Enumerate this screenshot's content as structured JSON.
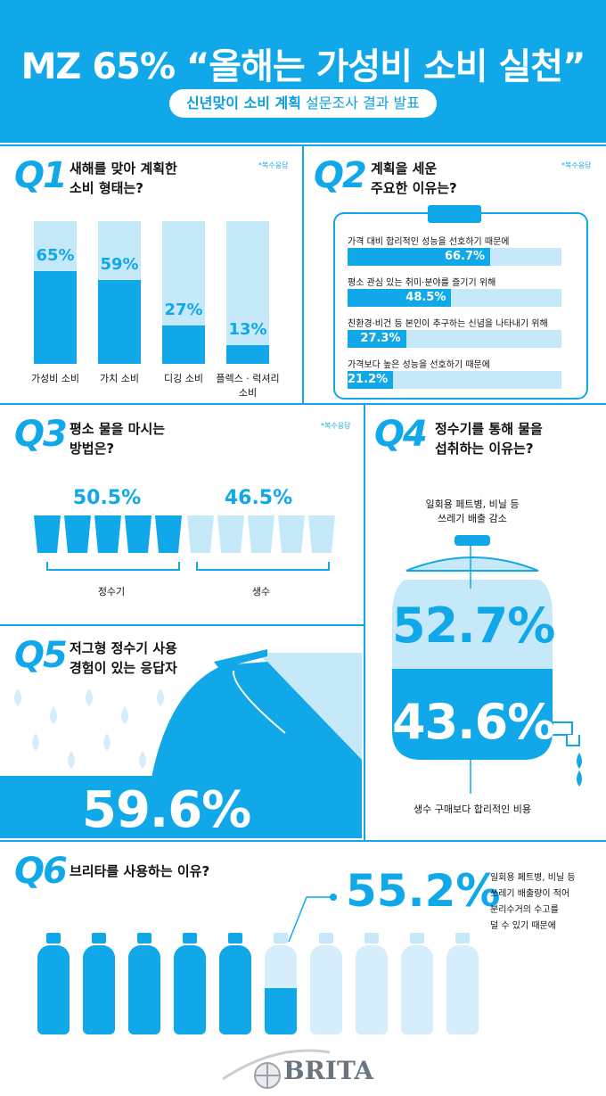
{
  "header": {
    "title": "MZ 65% “올해는 가성비 소비 실천”",
    "subtitle_bold": "신년맞이 소비 계획",
    "subtitle_rest": " 설문조사 결과 발표"
  },
  "footnote": "*복수응답",
  "q1": {
    "num": "Q1",
    "text_line1": "새해를 맞아 계획한",
    "text_line2": "소비 형태는?",
    "labels": [
      "65%",
      "59%",
      "27%",
      "13%"
    ],
    "categories": [
      "가성비 소비",
      "가치 소비",
      "디깅 소비",
      "플렉스 · 럭셔리 소비"
    ]
  },
  "q2": {
    "num": "Q2",
    "text_line1": "계획을 세운",
    "text_line2": "주요한 이유는?",
    "rows": [
      {
        "label": "가격 대비 합리적인 성능을 선호하기 때문에",
        "value": "66.7%"
      },
      {
        "label": "평소 관심 있는 취미·분야를 즐기기 위해",
        "value": "48.5%"
      },
      {
        "label": "친환경·비건 등 본인이 추구하는 신념을 나타내기 위해",
        "value": "27.3%"
      },
      {
        "label": "가격보다 높은 성능을 선호하기 때문에",
        "value": "21.2%"
      }
    ]
  },
  "q3": {
    "num": "Q3",
    "text_line1": "평소 물을 마시는",
    "text_line2": "방법은?",
    "left_value": "50.5%",
    "right_value": "46.5%",
    "left_label": "정수기",
    "right_label": "생수"
  },
  "q4": {
    "num": "Q4",
    "text_line1": "정수기를 통해 물을",
    "text_line2": "섭취하는 이유는?",
    "top_note_line1": "일회용 페트병, 비닐 등",
    "top_note_line2": "쓰레기 배출 감소",
    "top_value": "52.7%",
    "bottom_value": "43.6%",
    "bottom_note": "생수 구매보다 합리적인 비용"
  },
  "q5": {
    "num": "Q5",
    "text_line1": "저그형 정수기 사용",
    "text_line2": "경험이 있는 응답자",
    "value": "59.6%"
  },
  "q6": {
    "num": "Q6",
    "text": "브리타를 사용하는 이유?",
    "value": "55.2%",
    "note_line1": "일회용 페트병, 비닐 등",
    "note_line2": "쓰레기 배출량이 적어",
    "note_line3": "분리수거의 수고를",
    "note_line4": "덜 수 있기 때문에"
  },
  "footer": {
    "brand": "BRITA"
  },
  "chart_data": [
    {
      "type": "bar",
      "title": "새해를 맞아 계획한 소비 형태는?",
      "categories": [
        "가성비 소비",
        "가치 소비",
        "디깅 소비",
        "플렉스 · 럭셔리 소비"
      ],
      "values": [
        65,
        59,
        27,
        13
      ],
      "ylim": [
        0,
        100
      ]
    },
    {
      "type": "bar",
      "title": "계획을 세운 주요한 이유는?",
      "categories": [
        "가격 대비 합리적인 성능을 선호하기 때문에",
        "평소 관심 있는 취미·분야를 즐기기 위해",
        "친환경·비건 등 본인이 추구하는 신념을 나타내기 위해",
        "가격보다 높은 성능을 선호하기 때문에"
      ],
      "values": [
        66.7,
        48.5,
        27.3,
        21.2
      ],
      "ylim": [
        0,
        100
      ]
    },
    {
      "type": "bar",
      "title": "평소 물을 마시는 방법은?",
      "categories": [
        "정수기",
        "생수"
      ],
      "values": [
        50.5,
        46.5
      ]
    },
    {
      "type": "bar",
      "title": "정수기를 통해 물을 섭취하는 이유는?",
      "categories": [
        "일회용 페트병, 비닐 등 쓰레기 배출 감소",
        "생수 구매보다 합리적인 비용"
      ],
      "values": [
        52.7,
        43.6
      ]
    },
    {
      "type": "bar",
      "title": "저그형 정수기 사용 경험이 있는 응답자",
      "categories": [
        "저그형 정수기 사용 경험"
      ],
      "values": [
        59.6
      ]
    },
    {
      "type": "bar",
      "title": "브리타를 사용하는 이유?",
      "categories": [
        "일회용 페트병, 비닐 등 쓰레기 배출량이 적어 분리수거의 수고를 덜 수 있기 때문에"
      ],
      "values": [
        55.2
      ]
    }
  ]
}
